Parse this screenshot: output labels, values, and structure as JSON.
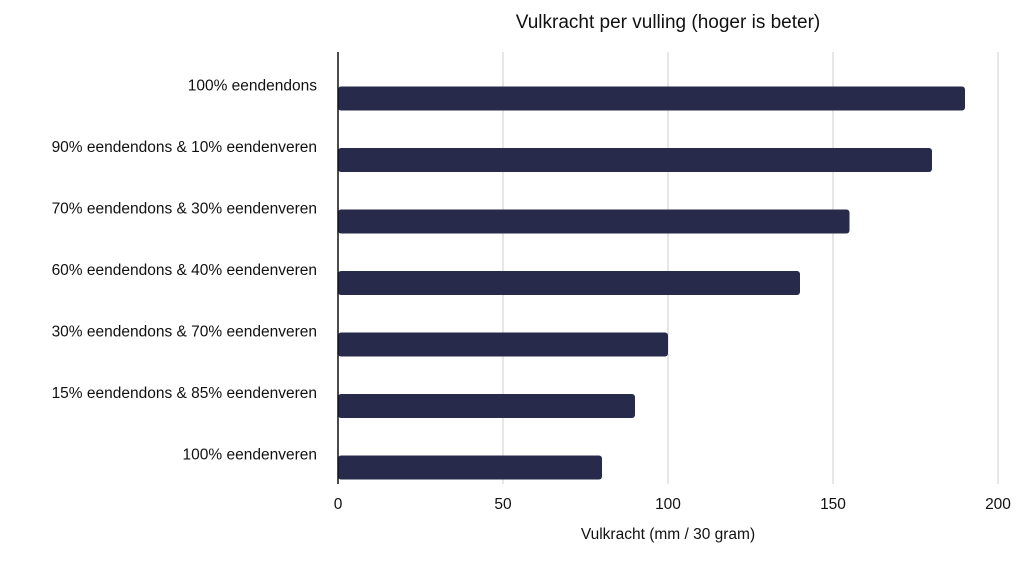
{
  "chart_data": {
    "type": "bar",
    "orientation": "horizontal",
    "title": "Vulkracht per vulling (hoger is beter)",
    "xlabel": "Vulkracht (mm / 30 gram)",
    "ylabel": "",
    "categories": [
      "100% eendendons",
      "90% eendendons & 10% eendenveren",
      "70% eendendons & 30% eendenveren",
      "60% eendendons & 40% eendenveren",
      "30% eendendons & 70% eendenveren",
      "15% eendendons & 85% eendenveren",
      "100% eendenveren"
    ],
    "values": [
      190,
      180,
      155,
      140,
      100,
      90,
      80
    ],
    "xlim": [
      0,
      200
    ],
    "xticks": [
      0,
      50,
      100,
      150,
      200
    ],
    "grid": true,
    "legend": "none",
    "bar_color": "#272a4a"
  }
}
